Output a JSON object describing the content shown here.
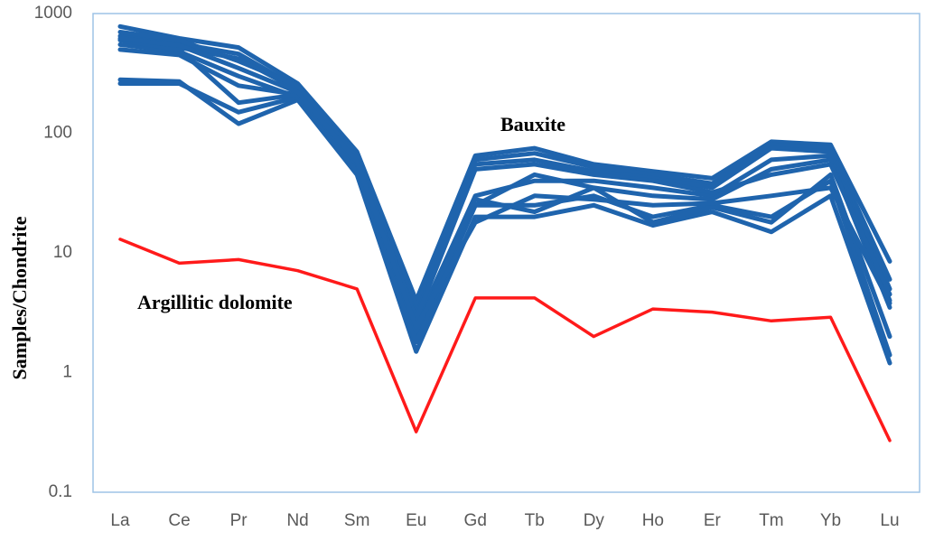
{
  "chart_data": {
    "type": "line",
    "y_label": "Samples/Chondrite",
    "categories": [
      "La",
      "Ce",
      "Pr",
      "Nd",
      "Sm",
      "Eu",
      "Gd",
      "Tb",
      "Dy",
      "Ho",
      "Er",
      "Tm",
      "Yb",
      "Lu"
    ],
    "ylim": [
      0.1,
      1000
    ],
    "yticks": [
      0.1,
      1,
      10,
      100,
      1000
    ],
    "log_y": true,
    "grid": false,
    "annotations": [
      {
        "text": "Bauxite",
        "color": "#000000"
      },
      {
        "text": "Argillitic dolomite",
        "color": "#000000"
      }
    ],
    "series": [
      {
        "color": "#1f64ad",
        "values": [
          780,
          620,
          520,
          260,
          70,
          4,
          65,
          75,
          55,
          48,
          42,
          85,
          80,
          8.5
        ]
      },
      {
        "color": "#1f64ad",
        "values": [
          650,
          560,
          460,
          240,
          65,
          3.5,
          60,
          68,
          52,
          45,
          38,
          80,
          75,
          6
        ]
      },
      {
        "color": "#1f64ad",
        "values": [
          600,
          520,
          420,
          230,
          60,
          3,
          55,
          60,
          48,
          42,
          35,
          75,
          70,
          5
        ]
      },
      {
        "color": "#1f64ad",
        "values": [
          550,
          480,
          300,
          200,
          55,
          2.5,
          30,
          40,
          40,
          35,
          30,
          60,
          65,
          4
        ]
      },
      {
        "color": "#1f64ad",
        "values": [
          500,
          450,
          250,
          210,
          50,
          2,
          25,
          45,
          35,
          30,
          28,
          50,
          60,
          3.5
        ]
      },
      {
        "color": "#1f64ad",
        "values": [
          280,
          270,
          120,
          190,
          45,
          1.5,
          20,
          20,
          25,
          17,
          22,
          15,
          30,
          1.2
        ]
      },
      {
        "color": "#1f64ad",
        "values": [
          260,
          260,
          150,
          200,
          48,
          1.8,
          25,
          25,
          30,
          20,
          25,
          20,
          40,
          1.4
        ]
      },
      {
        "color": "#1f64ad",
        "values": [
          600,
          500,
          180,
          210,
          55,
          2.2,
          28,
          22,
          35,
          18,
          24,
          18,
          45,
          2
        ]
      },
      {
        "color": "#1f64ad",
        "values": [
          700,
          600,
          400,
          250,
          62,
          2.8,
          50,
          55,
          45,
          40,
          32,
          45,
          55,
          4.5
        ]
      },
      {
        "color": "#1f64ad",
        "values": [
          620,
          540,
          350,
          220,
          58,
          2.4,
          18,
          30,
          28,
          25,
          26,
          30,
          35,
          3.8
        ]
      },
      {
        "color": "#ff1a1a",
        "values": [
          13,
          8.2,
          8.8,
          7.1,
          5.0,
          0.32,
          4.2,
          4.2,
          2.0,
          3.4,
          3.2,
          2.7,
          2.9,
          0.27
        ]
      }
    ]
  }
}
